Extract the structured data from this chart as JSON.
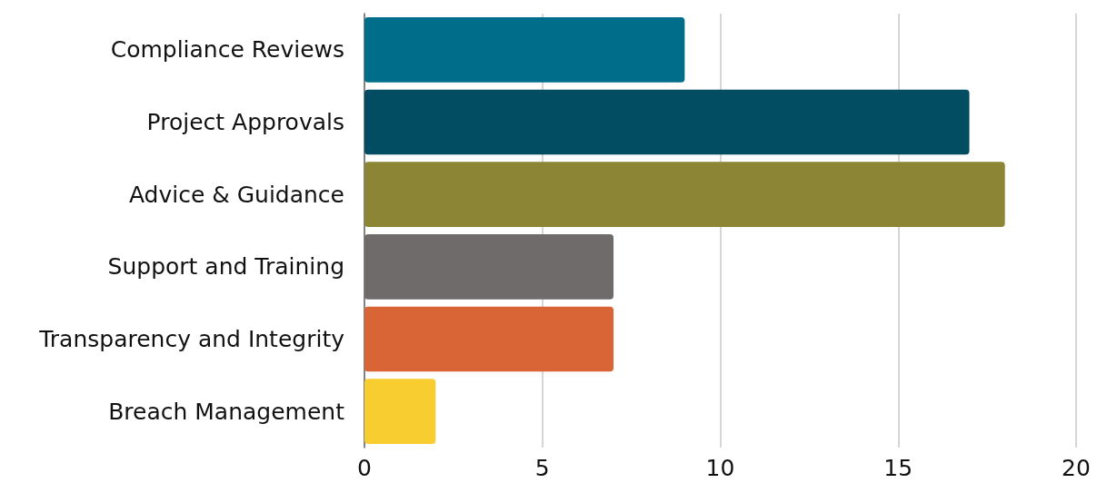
{
  "chart_data": {
    "type": "bar",
    "orientation": "horizontal",
    "categories": [
      "Compliance Reviews",
      "Project Approvals",
      "Advice & Guidance",
      "Support and Training",
      "Transparency and Integrity",
      "Breach Management"
    ],
    "values": [
      9,
      17,
      18,
      7,
      7,
      2
    ],
    "colors": [
      "#006e8a",
      "#034d63",
      "#8b8535",
      "#6f6b6b",
      "#d96536",
      "#f8cd2f"
    ],
    "xlim": [
      0,
      20
    ],
    "xticks": [
      0,
      5,
      10,
      15,
      20
    ],
    "grid": "x"
  }
}
